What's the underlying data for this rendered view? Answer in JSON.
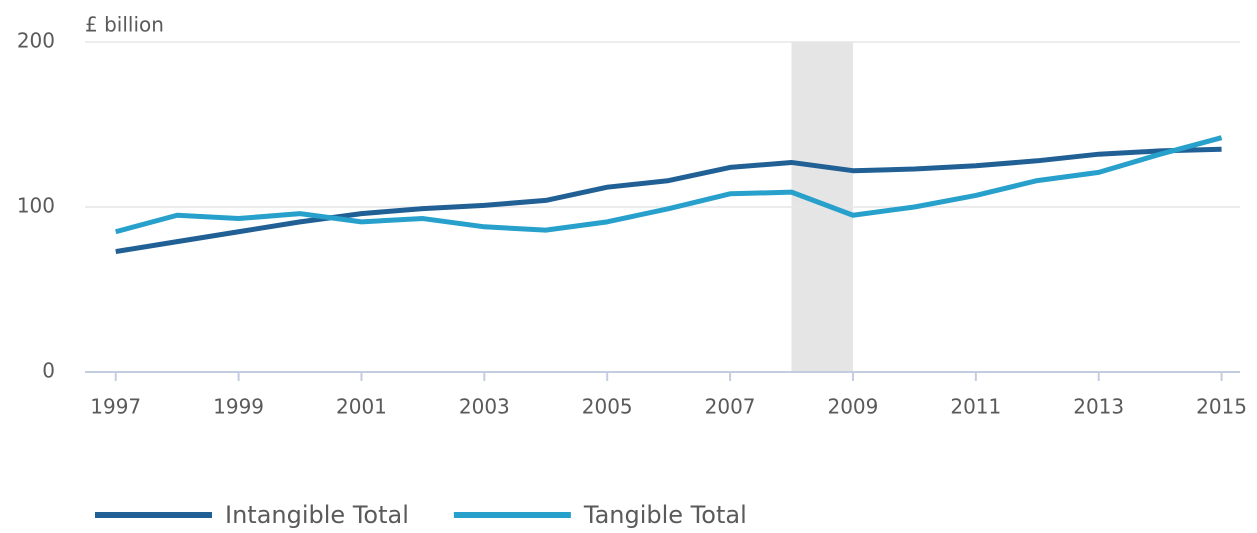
{
  "chart_data": {
    "type": "line",
    "y_label": "£ billion",
    "x": [
      1997,
      1998,
      1999,
      2000,
      2001,
      2002,
      2003,
      2004,
      2005,
      2006,
      2007,
      2008,
      2009,
      2010,
      2011,
      2012,
      2013,
      2014,
      2015
    ],
    "series": [
      {
        "name": "Intangible Total",
        "color": "#206095",
        "values": [
          73,
          79,
          85,
          91,
          96,
          99,
          101,
          104,
          112,
          116,
          124,
          127,
          122,
          123,
          125,
          128,
          132,
          134,
          135
        ]
      },
      {
        "name": "Tangible Total",
        "color": "#27a0cc",
        "values": [
          85,
          95,
          93,
          96,
          91,
          93,
          88,
          86,
          91,
          99,
          108,
          109,
          95,
          100,
          107,
          116,
          121,
          132,
          142
        ]
      }
    ],
    "shaded_regions": [
      [
        2008,
        2009
      ]
    ],
    "shade_color": "#e5e5e5",
    "xlim": [
      1996.5,
      2015.3
    ],
    "xticks": [
      1997,
      1999,
      2001,
      2003,
      2005,
      2007,
      2009,
      2011,
      2013,
      2015
    ],
    "ylim": [
      0,
      200
    ],
    "yticks": [
      0,
      100,
      200
    ],
    "grid": true
  }
}
